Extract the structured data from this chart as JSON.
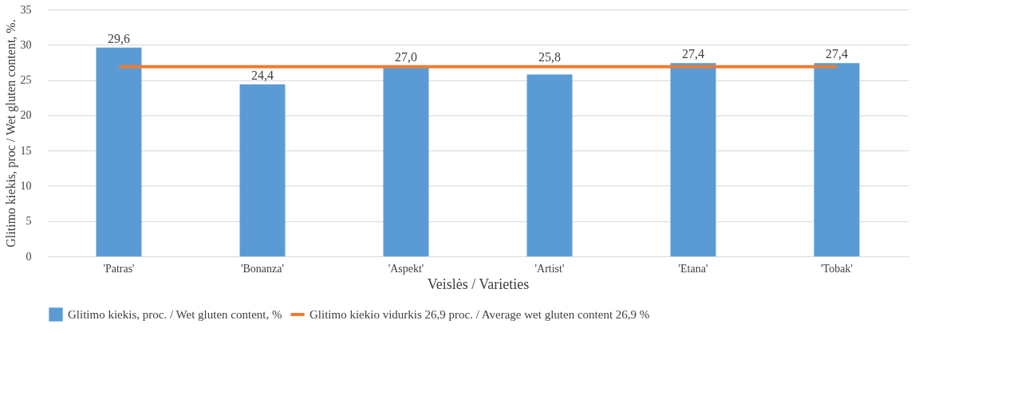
{
  "chart_data": {
    "type": "bar",
    "xlabel": "Veislės / Varieties",
    "ylabel": "Glitimo kiekis, proc / Wet gluten content, %.",
    "categories": [
      "'Patras'",
      "'Bonanza'",
      "'Aspekt'",
      "'Artist'",
      "'Etana'",
      "'Tobak'"
    ],
    "series": [
      {
        "name": "Glitimo kiekis, proc. / Wet gluten content, %",
        "color": "#5b9bd5",
        "values": [
          29.6,
          24.4,
          27.0,
          25.8,
          27.4,
          27.4
        ],
        "value_labels": [
          "29,6",
          "24,4",
          "27,0",
          "25,8",
          "27,4",
          "27,4"
        ]
      },
      {
        "name": "Glitimo kiekio vidurkis 26,9 proc. / Average wet gluten content 26,9 %",
        "type": "line",
        "color": "#ed7d31",
        "values": [
          26.9,
          26.9,
          26.9,
          26.9,
          26.9,
          26.9
        ]
      }
    ],
    "ylim": [
      0,
      35
    ],
    "yticks": [
      0,
      5,
      10,
      15,
      20,
      25,
      30,
      35
    ],
    "grid": "y",
    "legend": "bottom",
    "marker": "none"
  }
}
